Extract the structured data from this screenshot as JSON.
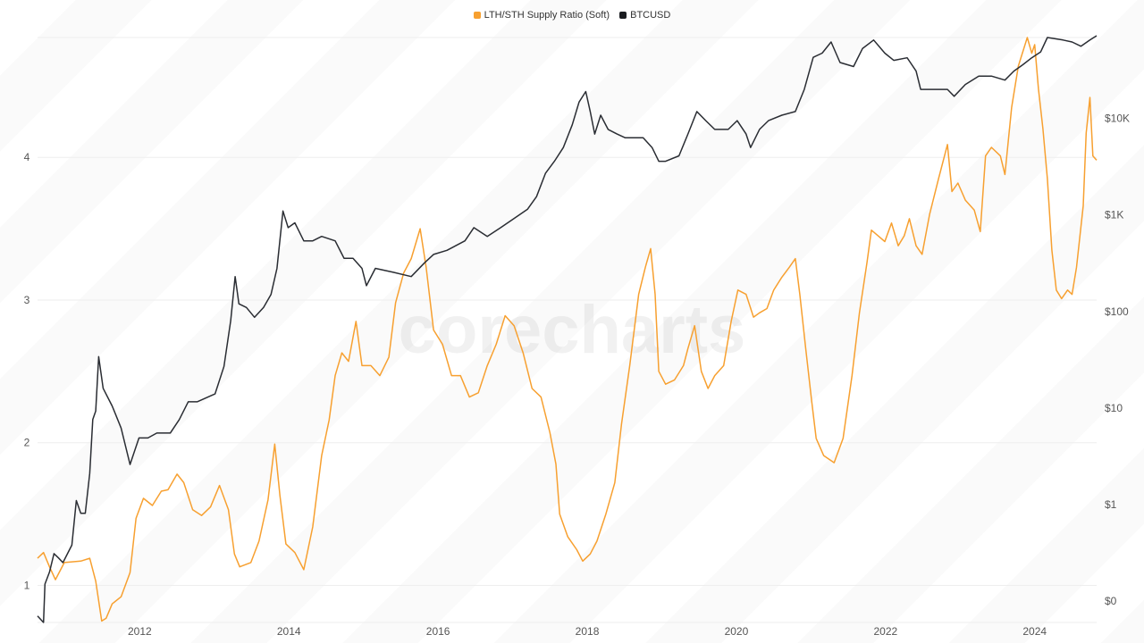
{
  "legend": {
    "series1": "LTH/STH Supply Ratio (Soft)",
    "series2": "BTCUSD"
  },
  "watermark": "corecharts",
  "colors": {
    "ratio": "#f7a030",
    "btc": "#2a2d33",
    "grid": "#eeeeee"
  },
  "chart_data": {
    "type": "line",
    "x_ticks": [
      "2012",
      "2014",
      "2016",
      "2018",
      "2020",
      "2022",
      "2024"
    ],
    "x_tick_values": [
      2012,
      2014,
      2016,
      2018,
      2020,
      2022,
      2024
    ],
    "xlim": [
      2010.63,
      2024.83
    ],
    "y_left": {
      "ticks": [
        "1",
        "2",
        "3",
        "4"
      ],
      "tick_values": [
        1,
        2,
        3,
        4
      ],
      "ylim": [
        0.74,
        4.84
      ],
      "scale": "linear",
      "grid": true
    },
    "y_right": {
      "ticks": [
        "$0",
        "$1",
        "$10",
        "$100",
        "$1K",
        "$10K"
      ],
      "tick_values": [
        0.1,
        1,
        10,
        100,
        1000,
        10000
      ],
      "ylim": [
        0.06,
        69000
      ],
      "scale": "log"
    },
    "legend_position": "top-center",
    "series": [
      {
        "name": "LTH/STH Supply Ratio (Soft)",
        "axis": "left",
        "points": [
          [
            2010.63,
            1.19
          ],
          [
            2010.71,
            1.23
          ],
          [
            2010.79,
            1.13
          ],
          [
            2010.87,
            1.04
          ],
          [
            2010.99,
            1.16
          ],
          [
            2011.21,
            1.17
          ],
          [
            2011.33,
            1.19
          ],
          [
            2011.41,
            1.03
          ],
          [
            2011.49,
            0.75
          ],
          [
            2011.55,
            0.77
          ],
          [
            2011.63,
            0.87
          ],
          [
            2011.75,
            0.92
          ],
          [
            2011.87,
            1.09
          ],
          [
            2011.95,
            1.47
          ],
          [
            2012.05,
            1.61
          ],
          [
            2012.17,
            1.56
          ],
          [
            2012.29,
            1.66
          ],
          [
            2012.38,
            1.67
          ],
          [
            2012.5,
            1.78
          ],
          [
            2012.59,
            1.72
          ],
          [
            2012.71,
            1.53
          ],
          [
            2012.83,
            1.49
          ],
          [
            2012.95,
            1.55
          ],
          [
            2013.07,
            1.7
          ],
          [
            2013.19,
            1.53
          ],
          [
            2013.27,
            1.22
          ],
          [
            2013.34,
            1.13
          ],
          [
            2013.49,
            1.16
          ],
          [
            2013.6,
            1.31
          ],
          [
            2013.72,
            1.6
          ],
          [
            2013.81,
            1.99
          ],
          [
            2013.88,
            1.63
          ],
          [
            2013.96,
            1.29
          ],
          [
            2014.08,
            1.23
          ],
          [
            2014.2,
            1.11
          ],
          [
            2014.32,
            1.41
          ],
          [
            2014.44,
            1.91
          ],
          [
            2014.54,
            2.16
          ],
          [
            2014.62,
            2.47
          ],
          [
            2014.71,
            2.63
          ],
          [
            2014.8,
            2.57
          ],
          [
            2014.9,
            2.85
          ],
          [
            2014.98,
            2.54
          ],
          [
            2015.1,
            2.54
          ],
          [
            2015.22,
            2.47
          ],
          [
            2015.34,
            2.6
          ],
          [
            2015.43,
            2.98
          ],
          [
            2015.54,
            3.19
          ],
          [
            2015.64,
            3.29
          ],
          [
            2015.76,
            3.5
          ],
          [
            2015.84,
            3.23
          ],
          [
            2015.94,
            2.79
          ],
          [
            2016.06,
            2.69
          ],
          [
            2016.18,
            2.47
          ],
          [
            2016.3,
            2.47
          ],
          [
            2016.42,
            2.32
          ],
          [
            2016.54,
            2.35
          ],
          [
            2016.66,
            2.54
          ],
          [
            2016.78,
            2.69
          ],
          [
            2016.9,
            2.89
          ],
          [
            2017.02,
            2.82
          ],
          [
            2017.14,
            2.63
          ],
          [
            2017.26,
            2.38
          ],
          [
            2017.38,
            2.32
          ],
          [
            2017.5,
            2.07
          ],
          [
            2017.58,
            1.85
          ],
          [
            2017.63,
            1.5
          ],
          [
            2017.74,
            1.34
          ],
          [
            2017.86,
            1.25
          ],
          [
            2017.94,
            1.17
          ],
          [
            2018.04,
            1.22
          ],
          [
            2018.13,
            1.31
          ],
          [
            2018.25,
            1.5
          ],
          [
            2018.37,
            1.72
          ],
          [
            2018.46,
            2.13
          ],
          [
            2018.57,
            2.54
          ],
          [
            2018.69,
            3.04
          ],
          [
            2018.78,
            3.23
          ],
          [
            2018.85,
            3.36
          ],
          [
            2018.91,
            3.04
          ],
          [
            2018.96,
            2.5
          ],
          [
            2019.05,
            2.41
          ],
          [
            2019.17,
            2.44
          ],
          [
            2019.29,
            2.54
          ],
          [
            2019.35,
            2.66
          ],
          [
            2019.44,
            2.82
          ],
          [
            2019.53,
            2.5
          ],
          [
            2019.62,
            2.38
          ],
          [
            2019.71,
            2.47
          ],
          [
            2019.83,
            2.54
          ],
          [
            2019.93,
            2.85
          ],
          [
            2020.02,
            3.07
          ],
          [
            2020.13,
            3.04
          ],
          [
            2020.23,
            2.88
          ],
          [
            2020.31,
            2.91
          ],
          [
            2020.41,
            2.94
          ],
          [
            2020.5,
            3.07
          ],
          [
            2020.61,
            3.16
          ],
          [
            2020.71,
            3.23
          ],
          [
            2020.79,
            3.29
          ],
          [
            2020.85,
            3.04
          ],
          [
            2020.93,
            2.66
          ],
          [
            2021.01,
            2.29
          ],
          [
            2021.07,
            2.03
          ],
          [
            2021.17,
            1.91
          ],
          [
            2021.31,
            1.86
          ],
          [
            2021.43,
            2.03
          ],
          [
            2021.55,
            2.47
          ],
          [
            2021.65,
            2.91
          ],
          [
            2021.75,
            3.26
          ],
          [
            2021.81,
            3.49
          ],
          [
            2021.9,
            3.45
          ],
          [
            2021.99,
            3.41
          ],
          [
            2022.08,
            3.54
          ],
          [
            2022.17,
            3.38
          ],
          [
            2022.25,
            3.45
          ],
          [
            2022.32,
            3.57
          ],
          [
            2022.41,
            3.38
          ],
          [
            2022.49,
            3.32
          ],
          [
            2022.59,
            3.6
          ],
          [
            2022.71,
            3.85
          ],
          [
            2022.83,
            4.09
          ],
          [
            2022.89,
            3.76
          ],
          [
            2022.97,
            3.82
          ],
          [
            2023.07,
            3.7
          ],
          [
            2023.19,
            3.63
          ],
          [
            2023.27,
            3.48
          ],
          [
            2023.34,
            4.01
          ],
          [
            2023.42,
            4.07
          ],
          [
            2023.54,
            4.01
          ],
          [
            2023.6,
            3.88
          ],
          [
            2023.69,
            4.35
          ],
          [
            2023.78,
            4.64
          ],
          [
            2023.9,
            4.84
          ],
          [
            2023.96,
            4.73
          ],
          [
            2024.0,
            4.79
          ],
          [
            2024.05,
            4.48
          ],
          [
            2024.11,
            4.2
          ],
          [
            2024.17,
            3.85
          ],
          [
            2024.23,
            3.35
          ],
          [
            2024.29,
            3.07
          ],
          [
            2024.36,
            3.01
          ],
          [
            2024.44,
            3.07
          ],
          [
            2024.5,
            3.04
          ],
          [
            2024.56,
            3.23
          ],
          [
            2024.65,
            3.66
          ],
          [
            2024.69,
            4.17
          ],
          [
            2024.74,
            4.42
          ],
          [
            2024.78,
            4.01
          ],
          [
            2024.83,
            3.98
          ]
        ]
      },
      {
        "name": "BTCUSD",
        "axis": "right",
        "points": [
          [
            2010.63,
            0.07
          ],
          [
            2010.71,
            0.06
          ],
          [
            2010.73,
            0.15
          ],
          [
            2010.79,
            0.2
          ],
          [
            2010.85,
            0.31
          ],
          [
            2010.91,
            0.28
          ],
          [
            2010.97,
            0.25
          ],
          [
            2011.09,
            0.38
          ],
          [
            2011.15,
            1.1
          ],
          [
            2011.21,
            0.81
          ],
          [
            2011.27,
            0.81
          ],
          [
            2011.33,
            2.1
          ],
          [
            2011.37,
            7.6
          ],
          [
            2011.41,
            9.3
          ],
          [
            2011.45,
            34
          ],
          [
            2011.51,
            16
          ],
          [
            2011.63,
            10.5
          ],
          [
            2011.75,
            6.2
          ],
          [
            2011.87,
            2.6
          ],
          [
            2011.99,
            4.9
          ],
          [
            2012.11,
            4.9
          ],
          [
            2012.23,
            5.5
          ],
          [
            2012.41,
            5.5
          ],
          [
            2012.53,
            7.6
          ],
          [
            2012.65,
            11.6
          ],
          [
            2012.77,
            11.6
          ],
          [
            2013.01,
            14
          ],
          [
            2013.13,
            27
          ],
          [
            2013.22,
            80
          ],
          [
            2013.28,
            230
          ],
          [
            2013.33,
            120
          ],
          [
            2013.43,
            110
          ],
          [
            2013.54,
            87
          ],
          [
            2013.66,
            110
          ],
          [
            2013.76,
            150
          ],
          [
            2013.84,
            280
          ],
          [
            2013.92,
            1100
          ],
          [
            2013.99,
            740
          ],
          [
            2014.08,
            830
          ],
          [
            2014.2,
            540
          ],
          [
            2014.32,
            540
          ],
          [
            2014.44,
            600
          ],
          [
            2014.62,
            540
          ],
          [
            2014.74,
            355
          ],
          [
            2014.86,
            355
          ],
          [
            2014.98,
            280
          ],
          [
            2015.04,
            185
          ],
          [
            2015.16,
            280
          ],
          [
            2015.4,
            255
          ],
          [
            2015.64,
            230
          ],
          [
            2015.82,
            320
          ],
          [
            2015.94,
            390
          ],
          [
            2016.12,
            430
          ],
          [
            2016.36,
            540
          ],
          [
            2016.48,
            740
          ],
          [
            2016.66,
            600
          ],
          [
            2016.84,
            740
          ],
          [
            2017.02,
            920
          ],
          [
            2017.2,
            1150
          ],
          [
            2017.32,
            1550
          ],
          [
            2017.44,
            2700
          ],
          [
            2017.56,
            3600
          ],
          [
            2017.68,
            5000
          ],
          [
            2017.8,
            8600
          ],
          [
            2017.89,
            14800
          ],
          [
            2017.98,
            19000
          ],
          [
            2018.04,
            11800
          ],
          [
            2018.1,
            6900
          ],
          [
            2018.18,
            10800
          ],
          [
            2018.28,
            7700
          ],
          [
            2018.4,
            6900
          ],
          [
            2018.51,
            6300
          ],
          [
            2018.75,
            6300
          ],
          [
            2018.87,
            5000
          ],
          [
            2018.96,
            3600
          ],
          [
            2019.05,
            3600
          ],
          [
            2019.23,
            4100
          ],
          [
            2019.35,
            6900
          ],
          [
            2019.47,
            11800
          ],
          [
            2019.59,
            9500
          ],
          [
            2019.71,
            7700
          ],
          [
            2019.89,
            7700
          ],
          [
            2020.01,
            9500
          ],
          [
            2020.13,
            6900
          ],
          [
            2020.19,
            5000
          ],
          [
            2020.31,
            7700
          ],
          [
            2020.43,
            9500
          ],
          [
            2020.61,
            10800
          ],
          [
            2020.79,
            11800
          ],
          [
            2020.91,
            20000
          ],
          [
            2021.03,
            43000
          ],
          [
            2021.15,
            47500
          ],
          [
            2021.27,
            62000
          ],
          [
            2021.39,
            38000
          ],
          [
            2021.57,
            34500
          ],
          [
            2021.69,
            53000
          ],
          [
            2021.84,
            65000
          ],
          [
            2021.99,
            47500
          ],
          [
            2022.11,
            40000
          ],
          [
            2022.29,
            42500
          ],
          [
            2022.41,
            31000
          ],
          [
            2022.47,
            20000
          ],
          [
            2022.65,
            20000
          ],
          [
            2022.83,
            20000
          ],
          [
            2022.92,
            17000
          ],
          [
            2023.07,
            22500
          ],
          [
            2023.25,
            27500
          ],
          [
            2023.42,
            27500
          ],
          [
            2023.6,
            25000
          ],
          [
            2023.72,
            31000
          ],
          [
            2023.84,
            36000
          ],
          [
            2023.96,
            42500
          ],
          [
            2024.08,
            49000
          ],
          [
            2024.17,
            69000
          ],
          [
            2024.38,
            65000
          ],
          [
            2024.5,
            62000
          ],
          [
            2024.62,
            56000
          ],
          [
            2024.74,
            65000
          ],
          [
            2024.83,
            72000
          ]
        ]
      }
    ]
  }
}
